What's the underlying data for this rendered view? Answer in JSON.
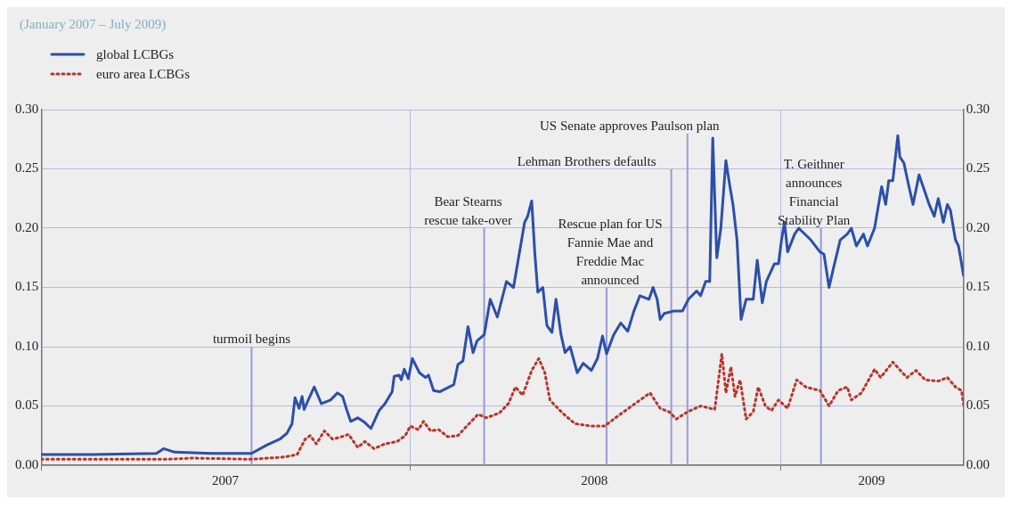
{
  "chart_data": {
    "type": "line",
    "subtitle": "(January 2007 – July 2009)",
    "xlim": [
      "2007-01-01",
      "2009-07-01"
    ],
    "xticks": [
      {
        "value": "2007-01-01",
        "label": null
      },
      {
        "value": "2007-07-02",
        "label": "2007"
      },
      {
        "value": "2008-01-01",
        "label": null
      },
      {
        "value": "2008-07-01",
        "label": "2008"
      },
      {
        "value": "2009-01-01",
        "label": null
      },
      {
        "value": "2009-04-01",
        "label": "2009"
      }
    ],
    "ylim": [
      0,
      0.3
    ],
    "yticks": [
      {
        "value": 0,
        "label": "0.00"
      },
      {
        "value": 0.05,
        "label": "0.05"
      },
      {
        "value": 0.1,
        "label": "0.10"
      },
      {
        "value": 0.15,
        "label": "0.15"
      },
      {
        "value": 0.2,
        "label": "0.20"
      },
      {
        "value": 0.25,
        "label": "0.25"
      },
      {
        "value": 0.3,
        "label": "0.30"
      }
    ],
    "y2lim": [
      0,
      0.3
    ],
    "y2ticks": [
      {
        "value": 0,
        "label": "0.00"
      },
      {
        "value": 0.05,
        "label": "0.05"
      },
      {
        "value": 0.1,
        "label": "0.10"
      },
      {
        "value": 0.15,
        "label": "0.15"
      },
      {
        "value": 0.2,
        "label": "0.20"
      },
      {
        "value": 0.25,
        "label": "0.25"
      },
      {
        "value": 0.3,
        "label": "0.30"
      }
    ],
    "grid": true,
    "legend": "top left",
    "series": [
      {
        "name": "global LCBGs",
        "color": "#2b4faa",
        "line_style": "solid",
        "x": [
          "2007-01-01",
          "2007-02-21",
          "2007-04-25",
          "2007-05-02",
          "2007-05-13",
          "2007-06-18",
          "2007-07-28",
          "2007-08-12",
          "2007-08-25",
          "2007-09-01",
          "2007-09-06",
          "2007-09-09",
          "2007-09-13",
          "2007-09-16",
          "2007-09-18",
          "2007-09-22",
          "2007-09-28",
          "2007-10-05",
          "2007-10-14",
          "2007-10-21",
          "2007-10-26",
          "2007-10-30",
          "2007-11-03",
          "2007-11-10",
          "2007-11-17",
          "2007-11-23",
          "2007-12-01",
          "2007-12-07",
          "2007-12-14",
          "2007-12-16",
          "2007-12-21",
          "2007-12-23",
          "2007-12-26",
          "2007-12-30",
          "2008-01-03",
          "2008-01-10",
          "2008-01-16",
          "2008-01-19",
          "2008-01-24",
          "2008-01-30",
          "2008-02-13",
          "2008-02-17",
          "2008-02-22",
          "2008-02-27",
          "2008-03-03",
          "2008-03-07",
          "2008-03-14",
          "2008-03-20",
          "2008-03-27",
          "2008-04-05",
          "2008-04-12",
          "2008-04-18",
          "2008-04-23",
          "2008-04-26",
          "2008-04-30",
          "2008-05-03",
          "2008-05-06",
          "2008-05-11",
          "2008-05-15",
          "2008-05-20",
          "2008-05-24",
          "2008-05-29",
          "2008-06-02",
          "2008-06-07",
          "2008-06-14",
          "2008-06-20",
          "2008-06-28",
          "2008-07-04",
          "2008-07-09",
          "2008-07-13",
          "2008-07-20",
          "2008-07-27",
          "2008-08-03",
          "2008-08-09",
          "2008-08-15",
          "2008-08-24",
          "2008-08-28",
          "2008-09-01",
          "2008-09-04",
          "2008-09-08",
          "2008-09-17",
          "2008-09-26",
          "2008-10-02",
          "2008-10-10",
          "2008-10-14",
          "2008-10-19",
          "2008-10-23",
          "2008-10-26",
          "2008-10-30",
          "2008-11-03",
          "2008-11-08",
          "2008-11-12",
          "2008-11-15",
          "2008-11-19",
          "2008-11-23",
          "2008-11-28",
          "2008-12-05",
          "2008-12-09",
          "2008-12-14",
          "2008-12-18",
          "2008-12-26",
          "2008-12-30",
          "2009-01-02",
          "2009-01-05",
          "2009-01-08",
          "2009-01-15",
          "2009-01-19",
          "2009-01-31",
          "2009-02-09",
          "2009-02-13",
          "2009-02-18",
          "2009-02-22",
          "2009-03-01",
          "2009-03-08",
          "2009-03-12",
          "2009-03-17",
          "2009-03-24",
          "2009-03-28",
          "2009-04-04",
          "2009-04-07",
          "2009-04-11",
          "2009-04-15",
          "2009-04-18",
          "2009-04-22",
          "2009-04-27",
          "2009-04-29",
          "2009-05-03",
          "2009-05-08",
          "2009-05-12",
          "2009-05-18",
          "2009-05-24",
          "2009-05-28",
          "2009-06-02",
          "2009-06-06",
          "2009-06-11",
          "2009-06-15",
          "2009-06-18",
          "2009-06-23",
          "2009-06-26",
          "2009-06-29",
          "2009-07-01"
        ],
        "values": [
          0.009,
          0.009,
          0.01,
          0.014,
          0.011,
          0.01,
          0.01,
          0.017,
          0.022,
          0.027,
          0.035,
          0.057,
          0.048,
          0.058,
          0.047,
          0.055,
          0.066,
          0.052,
          0.055,
          0.061,
          0.058,
          0.047,
          0.037,
          0.04,
          0.036,
          0.031,
          0.046,
          0.052,
          0.062,
          0.075,
          0.076,
          0.072,
          0.081,
          0.073,
          0.09,
          0.078,
          0.074,
          0.076,
          0.063,
          0.062,
          0.068,
          0.085,
          0.088,
          0.117,
          0.095,
          0.105,
          0.11,
          0.14,
          0.125,
          0.155,
          0.15,
          0.18,
          0.205,
          0.21,
          0.223,
          0.18,
          0.146,
          0.15,
          0.118,
          0.112,
          0.14,
          0.11,
          0.095,
          0.1,
          0.078,
          0.086,
          0.08,
          0.09,
          0.109,
          0.094,
          0.11,
          0.12,
          0.113,
          0.13,
          0.143,
          0.14,
          0.15,
          0.14,
          0.123,
          0.128,
          0.13,
          0.13,
          0.14,
          0.147,
          0.143,
          0.155,
          0.155,
          0.276,
          0.175,
          0.2,
          0.257,
          0.235,
          0.22,
          0.19,
          0.123,
          0.14,
          0.14,
          0.173,
          0.137,
          0.155,
          0.17,
          0.17,
          0.19,
          0.205,
          0.18,
          0.195,
          0.2,
          0.19,
          0.18,
          0.178,
          0.15,
          0.165,
          0.19,
          0.195,
          0.2,
          0.185,
          0.195,
          0.185,
          0.2,
          0.215,
          0.235,
          0.22,
          0.24,
          0.24,
          0.278,
          0.26,
          0.255,
          0.235,
          0.22,
          0.245,
          0.23,
          0.22,
          0.21,
          0.225,
          0.205,
          0.22,
          0.215,
          0.19,
          0.185,
          0.17,
          0.16
        ]
      },
      {
        "name": "euro area LCBGs",
        "color": "#b8352a",
        "line_style": "dotted",
        "x": [
          "2007-01-01",
          "2007-05-04",
          "2007-05-31",
          "2007-07-28",
          "2007-08-30",
          "2007-09-11",
          "2007-09-19",
          "2007-09-24",
          "2007-09-30",
          "2007-10-08",
          "2007-10-16",
          "2007-10-25",
          "2007-11-01",
          "2007-11-05",
          "2007-11-10",
          "2007-11-17",
          "2007-11-26",
          "2007-12-07",
          "2007-12-19",
          "2007-12-27",
          "2008-01-01",
          "2008-01-09",
          "2008-01-14",
          "2008-01-21",
          "2008-01-29",
          "2008-02-07",
          "2008-02-17",
          "2008-02-28",
          "2008-03-08",
          "2008-03-16",
          "2008-03-29",
          "2008-04-07",
          "2008-04-14",
          "2008-04-21",
          "2008-04-30",
          "2008-05-07",
          "2008-05-13",
          "2008-05-18",
          "2008-05-27",
          "2008-06-02",
          "2008-06-12",
          "2008-06-28",
          "2008-07-11",
          "2008-07-25",
          "2008-08-07",
          "2008-08-25",
          "2008-09-04",
          "2008-09-13",
          "2008-09-20",
          "2008-10-01",
          "2008-10-14",
          "2008-10-28",
          "2008-11-04",
          "2008-11-08",
          "2008-11-13",
          "2008-11-17",
          "2008-11-22",
          "2008-11-28",
          "2008-12-05",
          "2008-12-10",
          "2008-12-17",
          "2008-12-23",
          "2008-12-30",
          "2009-01-08",
          "2009-01-17",
          "2009-01-26",
          "2009-02-09",
          "2009-02-18",
          "2009-02-27",
          "2009-03-08",
          "2009-03-12",
          "2009-03-22",
          "2009-04-04",
          "2009-04-10",
          "2009-04-22",
          "2009-05-06",
          "2009-05-15",
          "2009-05-24",
          "2009-06-06",
          "2009-06-15",
          "2009-06-23",
          "2009-06-29",
          "2009-07-01"
        ],
        "values": [
          0.005,
          0.005,
          0.006,
          0.005,
          0.007,
          0.009,
          0.022,
          0.025,
          0.018,
          0.029,
          0.022,
          0.024,
          0.026,
          0.021,
          0.015,
          0.02,
          0.014,
          0.018,
          0.02,
          0.025,
          0.033,
          0.03,
          0.037,
          0.029,
          0.03,
          0.024,
          0.025,
          0.035,
          0.043,
          0.04,
          0.044,
          0.052,
          0.066,
          0.059,
          0.08,
          0.09,
          0.078,
          0.055,
          0.047,
          0.042,
          0.035,
          0.033,
          0.033,
          0.042,
          0.05,
          0.061,
          0.048,
          0.045,
          0.039,
          0.045,
          0.05,
          0.047,
          0.094,
          0.061,
          0.083,
          0.058,
          0.072,
          0.039,
          0.045,
          0.066,
          0.05,
          0.046,
          0.055,
          0.048,
          0.072,
          0.066,
          0.063,
          0.05,
          0.063,
          0.066,
          0.055,
          0.061,
          0.081,
          0.074,
          0.087,
          0.074,
          0.08,
          0.072,
          0.071,
          0.074,
          0.066,
          0.063,
          0.051
        ]
      }
    ],
    "ref_lines": [
      {
        "axis": "x",
        "value": "2007-07-28",
        "label": "turmoil begins",
        "color": "#9a9ad8"
      },
      {
        "axis": "x",
        "value": "2008-03-14",
        "label": "Bear Stearns rescue take-over",
        "color": "#9a9ad8"
      },
      {
        "axis": "x",
        "value": "2008-07-13",
        "label": "Rescue plan for US Fannie Mae and Freddie Mac announced",
        "color": "#9a9ad8"
      },
      {
        "axis": "x",
        "value": "2008-09-15",
        "label": "Lehman Brothers defaults",
        "color": "#9a9ad8"
      },
      {
        "axis": "x",
        "value": "2008-10-01",
        "label": "US Senate approves Paulson plan",
        "color": "#9a9ad8"
      },
      {
        "axis": "x",
        "value": "2009-02-10",
        "label": "T. Geithner announces Financial Stability Plan",
        "color": "#9a9ad8"
      }
    ]
  }
}
